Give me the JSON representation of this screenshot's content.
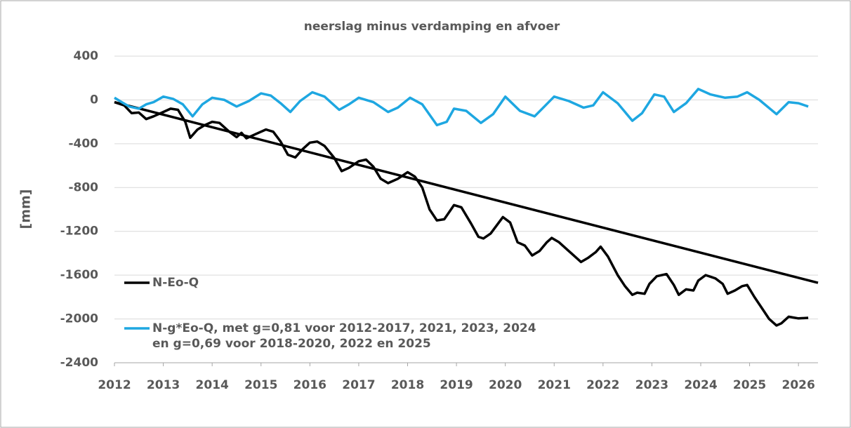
{
  "chart_data": {
    "type": "line",
    "title": "neerslag minus verdamping en afvoer",
    "ylabel": "[mm]",
    "xlim": [
      2012,
      2026.4
    ],
    "xticks": [
      2012,
      2013,
      2014,
      2015,
      2016,
      2017,
      2018,
      2019,
      2020,
      2021,
      2022,
      2023,
      2024,
      2025,
      2026
    ],
    "ylim": [
      -2400,
      400
    ],
    "yticks": [
      -2400,
      -2000,
      -1600,
      -1200,
      -800,
      -400,
      0,
      400
    ],
    "grid": true,
    "series": [
      {
        "name": "N-Eo-Q",
        "color": "#000000",
        "x": [
          2012.0,
          2012.2,
          2012.35,
          2012.5,
          2012.65,
          2012.8,
          2013.0,
          2013.15,
          2013.3,
          2013.45,
          2013.55,
          2013.7,
          2013.85,
          2014.0,
          2014.15,
          2014.35,
          2014.5,
          2014.6,
          2014.7,
          2014.9,
          2015.1,
          2015.25,
          2015.4,
          2015.55,
          2015.7,
          2015.85,
          2016.0,
          2016.15,
          2016.3,
          2016.5,
          2016.65,
          2016.8,
          2017.0,
          2017.15,
          2017.3,
          2017.45,
          2017.6,
          2017.8,
          2018.0,
          2018.15,
          2018.3,
          2018.45,
          2018.6,
          2018.75,
          2018.95,
          2019.1,
          2019.3,
          2019.45,
          2019.55,
          2019.7,
          2019.85,
          2019.95,
          2020.1,
          2020.25,
          2020.4,
          2020.55,
          2020.7,
          2020.85,
          2020.95,
          2021.1,
          2021.25,
          2021.4,
          2021.55,
          2021.7,
          2021.85,
          2021.95,
          2022.1,
          2022.3,
          2022.45,
          2022.6,
          2022.7,
          2022.85,
          2022.95,
          2023.1,
          2023.3,
          2023.45,
          2023.55,
          2023.7,
          2023.85,
          2023.95,
          2024.1,
          2024.3,
          2024.45,
          2024.55,
          2024.7,
          2024.85,
          2024.95,
          2025.1,
          2025.25,
          2025.4,
          2025.55,
          2025.65,
          2025.8,
          2026.0,
          2026.2
        ],
        "values": [
          -20,
          -50,
          -120,
          -115,
          -175,
          -150,
          -110,
          -80,
          -90,
          -200,
          -345,
          -270,
          -230,
          -200,
          -210,
          -290,
          -340,
          -300,
          -350,
          -310,
          -270,
          -290,
          -380,
          -500,
          -525,
          -450,
          -390,
          -380,
          -420,
          -530,
          -650,
          -620,
          -560,
          -545,
          -610,
          -720,
          -760,
          -720,
          -660,
          -700,
          -800,
          -1000,
          -1100,
          -1090,
          -960,
          -980,
          -1130,
          -1250,
          -1265,
          -1220,
          -1130,
          -1070,
          -1120,
          -1300,
          -1330,
          -1420,
          -1380,
          -1300,
          -1260,
          -1300,
          -1360,
          -1420,
          -1480,
          -1440,
          -1390,
          -1340,
          -1430,
          -1600,
          -1700,
          -1780,
          -1760,
          -1770,
          -1680,
          -1610,
          -1590,
          -1690,
          -1780,
          -1730,
          -1740,
          -1650,
          -1600,
          -1630,
          -1680,
          -1770,
          -1740,
          -1700,
          -1690,
          -1800,
          -1900,
          -2000,
          -2060,
          -2040,
          -1980,
          -1995,
          -1990
        ]
      },
      {
        "name": "N-g*Eo-Q, met g=0,81 voor 2012-2017, 2021, 2023, 2024\nen g=0,69 voor 2018-2020, 2022 en 2025",
        "color": "#1ea7e1",
        "x": [
          2012.0,
          2012.15,
          2012.3,
          2012.5,
          2012.65,
          2012.8,
          2013.0,
          2013.2,
          2013.4,
          2013.6,
          2013.8,
          2014.0,
          2014.25,
          2014.5,
          2014.75,
          2015.0,
          2015.2,
          2015.4,
          2015.6,
          2015.8,
          2016.05,
          2016.3,
          2016.6,
          2016.8,
          2017.0,
          2017.3,
          2017.6,
          2017.8,
          2018.05,
          2018.3,
          2018.6,
          2018.8,
          2018.95,
          2019.2,
          2019.5,
          2019.75,
          2020.0,
          2020.3,
          2020.6,
          2020.8,
          2021.0,
          2021.3,
          2021.6,
          2021.8,
          2022.0,
          2022.3,
          2022.6,
          2022.8,
          2023.05,
          2023.25,
          2023.45,
          2023.7,
          2023.95,
          2024.2,
          2024.5,
          2024.75,
          2024.95,
          2025.2,
          2025.55,
          2025.8,
          2026.0,
          2026.2
        ],
        "values": [
          20,
          -20,
          -60,
          -80,
          -40,
          -20,
          30,
          10,
          -40,
          -150,
          -40,
          20,
          0,
          -60,
          -10,
          60,
          40,
          -30,
          -110,
          -10,
          70,
          30,
          -90,
          -40,
          20,
          -20,
          -110,
          -70,
          20,
          -40,
          -230,
          -200,
          -80,
          -100,
          -210,
          -130,
          30,
          -100,
          -150,
          -60,
          30,
          -10,
          -70,
          -50,
          70,
          -30,
          -190,
          -120,
          50,
          30,
          -110,
          -30,
          100,
          50,
          20,
          30,
          70,
          0,
          -130,
          -20,
          -30,
          -60
        ]
      }
    ],
    "trendline": {
      "color": "#000000",
      "x": [
        2012,
        2026.4
      ],
      "values": [
        -20,
        -1670
      ]
    }
  }
}
